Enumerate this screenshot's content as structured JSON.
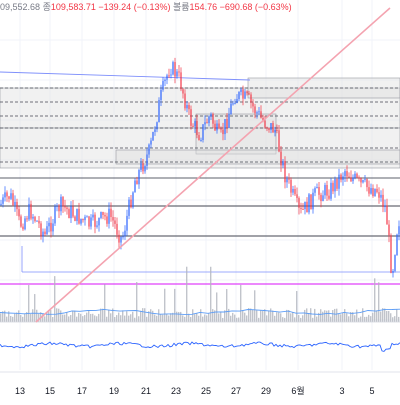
{
  "legend": {
    "open_value": "09,552.68",
    "close_label": "종",
    "close_value": "109,583.71",
    "change": "−139.24 (−0.13%)",
    "volume_label": "볼륨",
    "volume_value": "154.76",
    "volume_change": "−690.68 (−0.63%)"
  },
  "chart_data": {
    "type": "candlestick",
    "x_ticks": [
      "13",
      "15",
      "17",
      "19",
      "21",
      "23",
      "25",
      "27",
      "29",
      "6월",
      "3",
      "5"
    ],
    "grid": true,
    "colors": {
      "up": "#2962ff",
      "down": "#f23645",
      "trendline": "#f4a3b0",
      "zone_fill": "#e0e0e0",
      "indicator": "#2962ff",
      "volume": "#b2b5be",
      "magenta_line": "#e040fb"
    }
  }
}
